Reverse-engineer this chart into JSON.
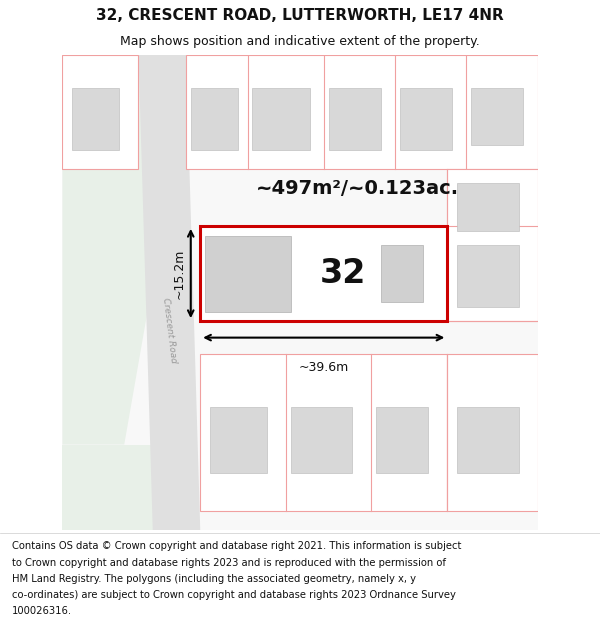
{
  "title_line1": "32, CRESCENT ROAD, LUTTERWORTH, LE17 4NR",
  "title_line2": "Map shows position and indicative extent of the property.",
  "area_label": "~497m²/~0.123ac.",
  "width_label": "~39.6m",
  "height_label": "~15.2m",
  "property_number": "32",
  "road_label": "Crescent Road",
  "bg_color": "#ffffff",
  "property_border": "#cc0000",
  "lot_border": "#f0a0a0",
  "title_fontsize": 11,
  "subtitle_fontsize": 9,
  "footer_fontsize": 7.2,
  "footer_lines": [
    "Contains OS data © Crown copyright and database right 2021. This information is subject",
    "to Crown copyright and database rights 2023 and is reproduced with the permission of",
    "HM Land Registry. The polygons (including the associated geometry, namely x, y",
    "co-ordinates) are subject to Crown copyright and database rights 2023 Ordnance Survey",
    "100026316."
  ]
}
